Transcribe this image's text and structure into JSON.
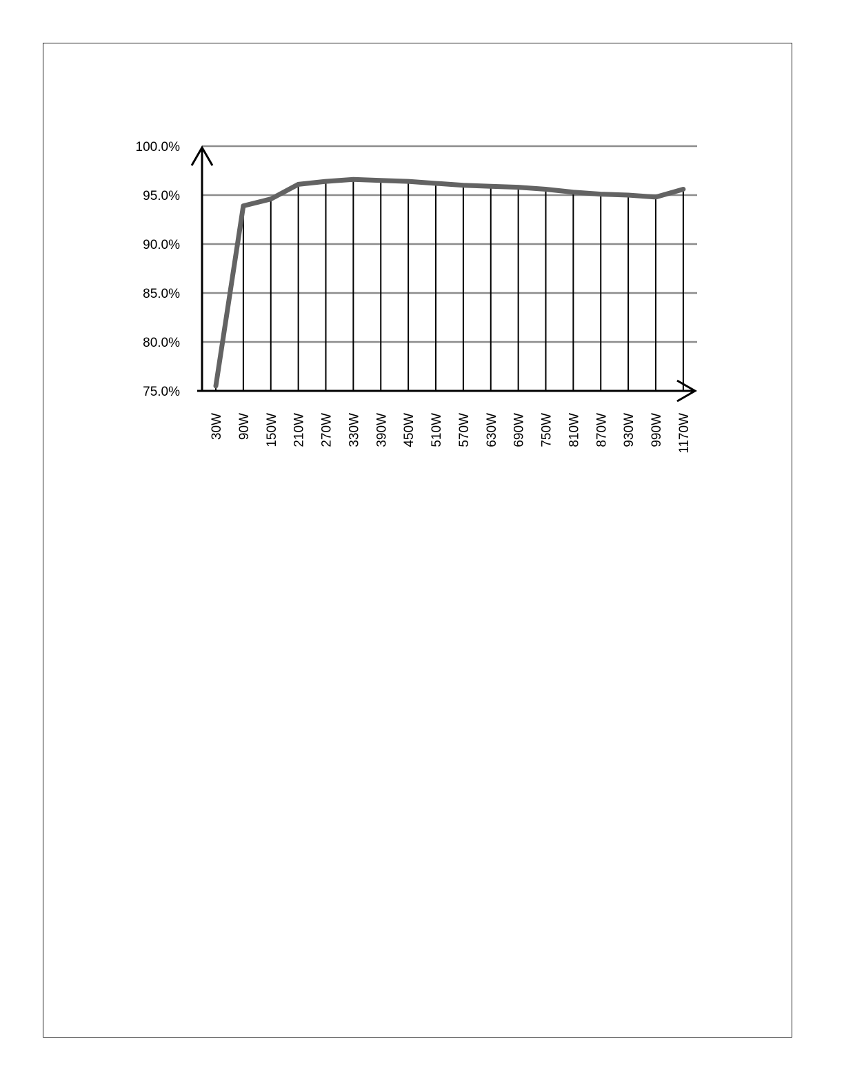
{
  "colors": {
    "line": "#636363",
    "gridline": "#8c8c8c",
    "axis": "#000000",
    "drop_line": "#000000"
  },
  "chart_data": {
    "type": "line",
    "title": "",
    "xlabel": "",
    "ylabel": "",
    "categories": [
      "30W",
      "90W",
      "150W",
      "210W",
      "270W",
      "330W",
      "390W",
      "450W",
      "510W",
      "570W",
      "630W",
      "690W",
      "750W",
      "810W",
      "870W",
      "930W",
      "990W",
      "1170W"
    ],
    "series": [
      {
        "values": [
          75.5,
          93.9,
          94.6,
          96.1,
          96.4,
          96.6,
          96.5,
          96.4,
          96.2,
          96.0,
          95.9,
          95.8,
          95.6,
          95.3,
          95.1,
          95.0,
          94.8,
          95.6
        ]
      }
    ],
    "ylim": [
      75,
      100
    ],
    "yticks": [
      75,
      80,
      85,
      90,
      95,
      100
    ],
    "ytick_labels": [
      "75.0%",
      "80.0%",
      "85.0%",
      "90.0%",
      "95.0%",
      "100.0%"
    ],
    "grid": "horizontal",
    "drop_lines": true,
    "x_tick_label_rotation": "vertical",
    "legend": "none"
  }
}
